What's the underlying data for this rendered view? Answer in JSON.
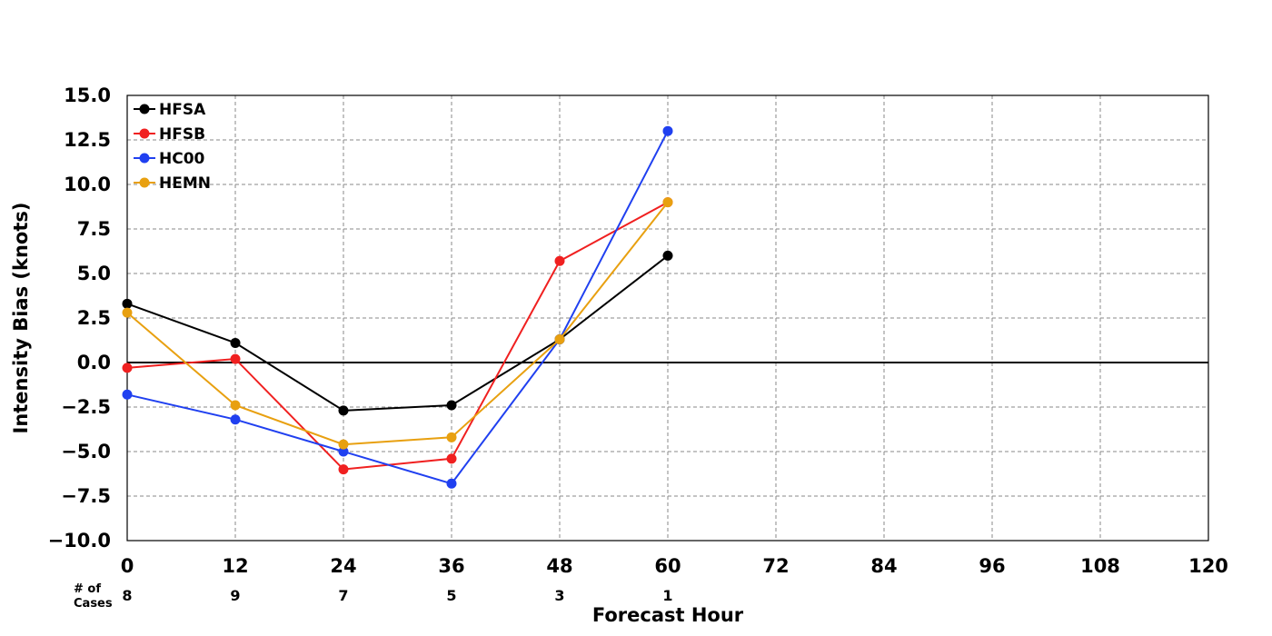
{
  "chart_data": {
    "type": "line",
    "xlabel": "Forecast Hour",
    "ylabel": "Intensity Bias (knots)",
    "xlim": [
      0,
      120
    ],
    "ylim": [
      -10.0,
      15.0
    ],
    "x_ticks": [
      "0",
      "12",
      "24",
      "36",
      "48",
      "60",
      "72",
      "84",
      "96",
      "108",
      "120"
    ],
    "y_ticks": [
      "15.0",
      "12.5",
      "10.0",
      "7.5",
      "5.0",
      "2.5",
      "0.0",
      "−2.5",
      "−5.0",
      "−7.5",
      "−10.0"
    ],
    "grid": true,
    "legend_position": "top-left",
    "cases_title": [
      "# of",
      "Cases"
    ],
    "cases": [
      {
        "hour": 0,
        "count": "8"
      },
      {
        "hour": 12,
        "count": "9"
      },
      {
        "hour": 24,
        "count": "7"
      },
      {
        "hour": 36,
        "count": "5"
      },
      {
        "hour": 48,
        "count": "3"
      },
      {
        "hour": 60,
        "count": "1"
      }
    ],
    "x": [
      0,
      12,
      24,
      36,
      48,
      60
    ],
    "series": [
      {
        "name": "HFSA",
        "color": "#000000",
        "values": [
          3.3,
          1.1,
          -2.7,
          -2.4,
          1.3,
          6.0
        ]
      },
      {
        "name": "HFSB",
        "color": "#f02020",
        "values": [
          -0.3,
          0.2,
          -6.0,
          -5.4,
          5.7,
          9.0
        ]
      },
      {
        "name": "HC00",
        "color": "#2040f0",
        "values": [
          -1.8,
          -3.2,
          -5.0,
          -6.8,
          1.3,
          13.0
        ]
      },
      {
        "name": "HEMN",
        "color": "#e8a010",
        "values": [
          2.8,
          -2.4,
          -4.6,
          -4.2,
          1.3,
          9.0
        ]
      }
    ]
  }
}
